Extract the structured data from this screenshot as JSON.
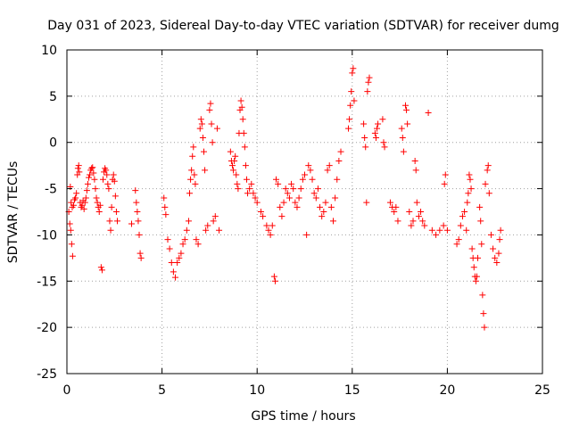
{
  "chart_data": {
    "type": "scatter",
    "title": "Day 031 of 2023, Sidereal Day-to-day VTEC variation (SDTVAR) for receiver dumg",
    "xlabel": "GPS time / hours",
    "ylabel": "SDTVAR / TECUs",
    "xlim": [
      0,
      25
    ],
    "ylim": [
      -25,
      10
    ],
    "xticks": [
      0,
      5,
      10,
      15,
      20,
      25
    ],
    "yticks": [
      -25,
      -20,
      -15,
      -10,
      -5,
      0,
      5,
      10
    ],
    "xtick_labels": [
      "0",
      "5",
      "10",
      "15",
      "20",
      "25"
    ],
    "ytick_labels": [
      "-25",
      "-20",
      "-15",
      "-10",
      "-5",
      "0",
      "5",
      "10"
    ],
    "grid": true,
    "marker": "+",
    "color": "#ff0000",
    "series": [
      {
        "name": "SDTVAR",
        "points": [
          [
            0.1,
            -7.5
          ],
          [
            0.15,
            -8.8
          ],
          [
            0.2,
            -9.5
          ],
          [
            0.25,
            -11.0
          ],
          [
            0.3,
            -12.3
          ],
          [
            0.18,
            -4.8
          ],
          [
            0.22,
            -6.5
          ],
          [
            0.28,
            -7.0
          ],
          [
            0.35,
            -6.8
          ],
          [
            0.4,
            -6.2
          ],
          [
            0.45,
            -6.0
          ],
          [
            0.5,
            -5.5
          ],
          [
            0.55,
            -3.5
          ],
          [
            0.58,
            -2.8
          ],
          [
            0.62,
            -2.5
          ],
          [
            0.65,
            -3.2
          ],
          [
            0.7,
            -6.5
          ],
          [
            0.75,
            -7.0
          ],
          [
            0.8,
            -6.8
          ],
          [
            0.85,
            -6.3
          ],
          [
            0.9,
            -7.2
          ],
          [
            0.95,
            -6.5
          ],
          [
            1.0,
            -6.0
          ],
          [
            1.05,
            -5.2
          ],
          [
            1.1,
            -4.5
          ],
          [
            1.15,
            -3.8
          ],
          [
            1.2,
            -3.5
          ],
          [
            1.25,
            -3.0
          ],
          [
            1.3,
            -2.8
          ],
          [
            1.35,
            -2.7
          ],
          [
            1.4,
            -3.3
          ],
          [
            1.45,
            -4.0
          ],
          [
            1.5,
            -5.0
          ],
          [
            1.55,
            -6.0
          ],
          [
            1.6,
            -6.5
          ],
          [
            1.65,
            -7.0
          ],
          [
            1.7,
            -7.5
          ],
          [
            1.75,
            -6.8
          ],
          [
            1.8,
            -13.5
          ],
          [
            1.85,
            -13.8
          ],
          [
            1.9,
            -4.0
          ],
          [
            1.95,
            -3.2
          ],
          [
            2.0,
            -2.8
          ],
          [
            2.05,
            -3.0
          ],
          [
            2.1,
            -3.5
          ],
          [
            2.15,
            -4.5
          ],
          [
            2.2,
            -5.0
          ],
          [
            2.25,
            -8.5
          ],
          [
            2.3,
            -9.5
          ],
          [
            2.35,
            -7.0
          ],
          [
            2.4,
            -4.0
          ],
          [
            2.45,
            -3.5
          ],
          [
            2.5,
            -4.2
          ],
          [
            2.55,
            -5.8
          ],
          [
            2.6,
            -7.5
          ],
          [
            2.65,
            -8.5
          ],
          [
            3.4,
            -8.8
          ],
          [
            3.6,
            -5.2
          ],
          [
            3.65,
            -6.5
          ],
          [
            3.7,
            -7.5
          ],
          [
            3.75,
            -8.5
          ],
          [
            3.8,
            -10.0
          ],
          [
            3.85,
            -12.0
          ],
          [
            3.9,
            -12.5
          ],
          [
            5.1,
            -6.0
          ],
          [
            5.15,
            -7.0
          ],
          [
            5.2,
            -7.8
          ],
          [
            5.3,
            -10.5
          ],
          [
            5.4,
            -11.5
          ],
          [
            5.5,
            -13.0
          ],
          [
            5.6,
            -14.0
          ],
          [
            5.7,
            -14.6
          ],
          [
            5.8,
            -13.0
          ],
          [
            5.9,
            -12.5
          ],
          [
            6.0,
            -12.0
          ],
          [
            6.1,
            -11.0
          ],
          [
            6.2,
            -10.5
          ],
          [
            6.3,
            -9.5
          ],
          [
            6.4,
            -8.5
          ],
          [
            6.45,
            -5.5
          ],
          [
            6.5,
            -4.0
          ],
          [
            6.55,
            -3.0
          ],
          [
            6.6,
            -1.5
          ],
          [
            6.65,
            -0.5
          ],
          [
            6.7,
            -3.5
          ],
          [
            6.75,
            -4.5
          ],
          [
            6.8,
            -10.5
          ],
          [
            6.9,
            -11.0
          ],
          [
            7.0,
            1.5
          ],
          [
            7.05,
            2.5
          ],
          [
            7.1,
            2.0
          ],
          [
            7.15,
            0.5
          ],
          [
            7.2,
            -1.0
          ],
          [
            7.25,
            -3.0
          ],
          [
            7.3,
            -9.5
          ],
          [
            7.4,
            -9.0
          ],
          [
            7.5,
            3.5
          ],
          [
            7.55,
            4.2
          ],
          [
            7.6,
            2.0
          ],
          [
            7.65,
            0.0
          ],
          [
            7.7,
            -8.5
          ],
          [
            7.8,
            -8.0
          ],
          [
            7.9,
            1.5
          ],
          [
            8.0,
            -9.5
          ],
          [
            8.6,
            -1.0
          ],
          [
            8.65,
            -2.0
          ],
          [
            8.7,
            -2.5
          ],
          [
            8.75,
            -3.0
          ],
          [
            8.8,
            -2.0
          ],
          [
            8.85,
            -1.5
          ],
          [
            8.9,
            -3.5
          ],
          [
            8.95,
            -4.5
          ],
          [
            9.0,
            -5.0
          ],
          [
            9.05,
            1.0
          ],
          [
            9.1,
            3.5
          ],
          [
            9.15,
            4.5
          ],
          [
            9.2,
            3.8
          ],
          [
            9.25,
            2.5
          ],
          [
            9.3,
            1.0
          ],
          [
            9.35,
            -0.5
          ],
          [
            9.4,
            -2.5
          ],
          [
            9.45,
            -4.0
          ],
          [
            9.5,
            -5.5
          ],
          [
            9.6,
            -5.0
          ],
          [
            9.7,
            -4.5
          ],
          [
            9.8,
            -5.5
          ],
          [
            9.9,
            -6.0
          ],
          [
            10.0,
            -6.5
          ],
          [
            10.2,
            -7.5
          ],
          [
            10.3,
            -8.0
          ],
          [
            10.5,
            -9.0
          ],
          [
            10.6,
            -9.5
          ],
          [
            10.7,
            -10.0
          ],
          [
            10.8,
            -9.0
          ],
          [
            10.9,
            -14.5
          ],
          [
            10.95,
            -15.0
          ],
          [
            11.0,
            -4.0
          ],
          [
            11.1,
            -4.5
          ],
          [
            11.2,
            -7.0
          ],
          [
            11.3,
            -8.0
          ],
          [
            11.4,
            -6.5
          ],
          [
            11.5,
            -5.0
          ],
          [
            11.6,
            -5.5
          ],
          [
            11.7,
            -6.0
          ],
          [
            11.8,
            -4.5
          ],
          [
            11.9,
            -5.0
          ],
          [
            12.0,
            -6.5
          ],
          [
            12.1,
            -7.0
          ],
          [
            12.2,
            -6.0
          ],
          [
            12.3,
            -5.0
          ],
          [
            12.4,
            -4.0
          ],
          [
            12.5,
            -3.5
          ],
          [
            12.6,
            -10.0
          ],
          [
            12.7,
            -2.5
          ],
          [
            12.8,
            -3.0
          ],
          [
            12.9,
            -4.0
          ],
          [
            13.0,
            -5.5
          ],
          [
            13.1,
            -6.0
          ],
          [
            13.2,
            -5.0
          ],
          [
            13.3,
            -7.0
          ],
          [
            13.4,
            -8.0
          ],
          [
            13.5,
            -7.5
          ],
          [
            13.6,
            -6.5
          ],
          [
            13.7,
            -3.0
          ],
          [
            13.8,
            -2.5
          ],
          [
            13.9,
            -7.0
          ],
          [
            14.0,
            -8.5
          ],
          [
            14.1,
            -6.0
          ],
          [
            14.2,
            -4.0
          ],
          [
            14.3,
            -2.0
          ],
          [
            14.4,
            -1.0
          ],
          [
            14.8,
            1.5
          ],
          [
            14.85,
            2.5
          ],
          [
            14.9,
            4.0
          ],
          [
            14.95,
            5.5
          ],
          [
            15.0,
            7.5
          ],
          [
            15.05,
            8.0
          ],
          [
            15.1,
            4.5
          ],
          [
            15.6,
            2.0
          ],
          [
            15.65,
            0.5
          ],
          [
            15.7,
            -0.5
          ],
          [
            15.75,
            -6.5
          ],
          [
            15.8,
            5.5
          ],
          [
            15.85,
            6.5
          ],
          [
            15.9,
            7.0
          ],
          [
            16.2,
            1.0
          ],
          [
            16.25,
            0.5
          ],
          [
            16.3,
            1.5
          ],
          [
            16.35,
            2.0
          ],
          [
            16.6,
            2.5
          ],
          [
            16.65,
            0.0
          ],
          [
            16.7,
            -0.5
          ],
          [
            17.0,
            -6.5
          ],
          [
            17.1,
            -7.0
          ],
          [
            17.2,
            -7.5
          ],
          [
            17.3,
            -7.0
          ],
          [
            17.4,
            -8.5
          ],
          [
            17.6,
            1.5
          ],
          [
            17.65,
            0.5
          ],
          [
            17.7,
            -1.0
          ],
          [
            17.8,
            4.0
          ],
          [
            17.85,
            3.5
          ],
          [
            17.9,
            2.0
          ],
          [
            18.0,
            -7.5
          ],
          [
            18.1,
            -9.0
          ],
          [
            18.2,
            -8.5
          ],
          [
            18.3,
            -2.0
          ],
          [
            18.35,
            -3.0
          ],
          [
            18.4,
            -6.5
          ],
          [
            18.5,
            -8.0
          ],
          [
            18.6,
            -7.5
          ],
          [
            18.7,
            -8.5
          ],
          [
            18.8,
            -9.0
          ],
          [
            19.0,
            3.2
          ],
          [
            19.2,
            -9.5
          ],
          [
            19.4,
            -10.0
          ],
          [
            19.6,
            -9.5
          ],
          [
            19.8,
            -9.0
          ],
          [
            19.85,
            -4.5
          ],
          [
            19.9,
            -3.5
          ],
          [
            20.0,
            -9.5
          ],
          [
            20.5,
            -11.0
          ],
          [
            20.6,
            -10.5
          ],
          [
            20.7,
            -9.0
          ],
          [
            20.8,
            -8.0
          ],
          [
            20.9,
            -7.5
          ],
          [
            21.0,
            -9.5
          ],
          [
            21.05,
            -6.5
          ],
          [
            21.1,
            -5.5
          ],
          [
            21.15,
            -3.5
          ],
          [
            21.2,
            -4.0
          ],
          [
            21.25,
            -5.0
          ],
          [
            21.3,
            -11.5
          ],
          [
            21.35,
            -12.5
          ],
          [
            21.4,
            -13.5
          ],
          [
            21.45,
            -14.5
          ],
          [
            21.5,
            -15.0
          ],
          [
            21.55,
            -14.5
          ],
          [
            21.6,
            -12.5
          ],
          [
            21.7,
            -7.0
          ],
          [
            21.75,
            -8.5
          ],
          [
            21.8,
            -11.0
          ],
          [
            21.85,
            -16.5
          ],
          [
            21.9,
            -18.5
          ],
          [
            21.95,
            -20.0
          ],
          [
            22.0,
            -4.5
          ],
          [
            22.1,
            -3.0
          ],
          [
            22.15,
            -2.5
          ],
          [
            22.2,
            -5.5
          ],
          [
            22.3,
            -10.0
          ],
          [
            22.4,
            -11.5
          ],
          [
            22.5,
            -12.5
          ],
          [
            22.6,
            -13.0
          ],
          [
            22.7,
            -12.0
          ],
          [
            22.75,
            -10.5
          ],
          [
            22.8,
            -9.5
          ]
        ]
      }
    ]
  }
}
